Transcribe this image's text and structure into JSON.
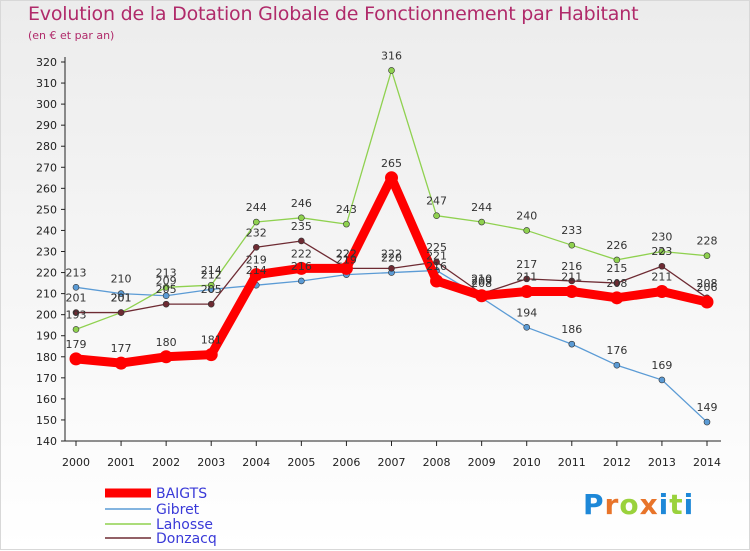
{
  "title": "Evolution de la Dotation Globale de Fonctionnement par Habitant",
  "subtitle": "(en € et par an)",
  "logo_text": "Proxiti",
  "chart_data": {
    "type": "line",
    "title": "Evolution de la Dotation Globale de Fonctionnement par Habitant",
    "subtitle": "(en € et par an)",
    "xlabel": "",
    "ylabel": "",
    "x": [
      2000,
      2001,
      2002,
      2003,
      2004,
      2005,
      2006,
      2007,
      2008,
      2009,
      2010,
      2011,
      2012,
      2013,
      2014
    ],
    "ylim": [
      140,
      320
    ],
    "yticks": [
      140,
      150,
      160,
      170,
      180,
      190,
      200,
      210,
      220,
      230,
      240,
      250,
      260,
      270,
      280,
      290,
      300,
      310,
      320
    ],
    "grid": false,
    "legend_position": "bottom-left",
    "series": [
      {
        "name": "Gibret",
        "color": "#5b9bd5",
        "values": [
          213,
          210,
          209,
          212,
          214,
          216,
          219,
          220,
          221,
          208,
          194,
          186,
          176,
          169,
          149
        ]
      },
      {
        "name": "Lahosse",
        "color": "#8fd14f",
        "values": [
          193,
          201,
          213,
          214,
          244,
          246,
          243,
          316,
          247,
          244,
          240,
          233,
          226,
          230,
          228
        ]
      },
      {
        "name": "Donzacq",
        "color": "#6e2b33",
        "values": [
          201,
          201,
          205,
          205,
          232,
          235,
          222,
          222,
          225,
          210,
          217,
          216,
          215,
          223,
          208
        ]
      },
      {
        "name": "BAIGTS",
        "color": "#ff0000",
        "values": [
          179,
          177,
          180,
          181,
          219,
          222,
          222,
          265,
          216,
          209,
          211,
          211,
          208,
          211,
          206
        ]
      }
    ],
    "legend": [
      "BAIGTS",
      "Gibret",
      "Lahosse",
      "Donzacq"
    ]
  }
}
